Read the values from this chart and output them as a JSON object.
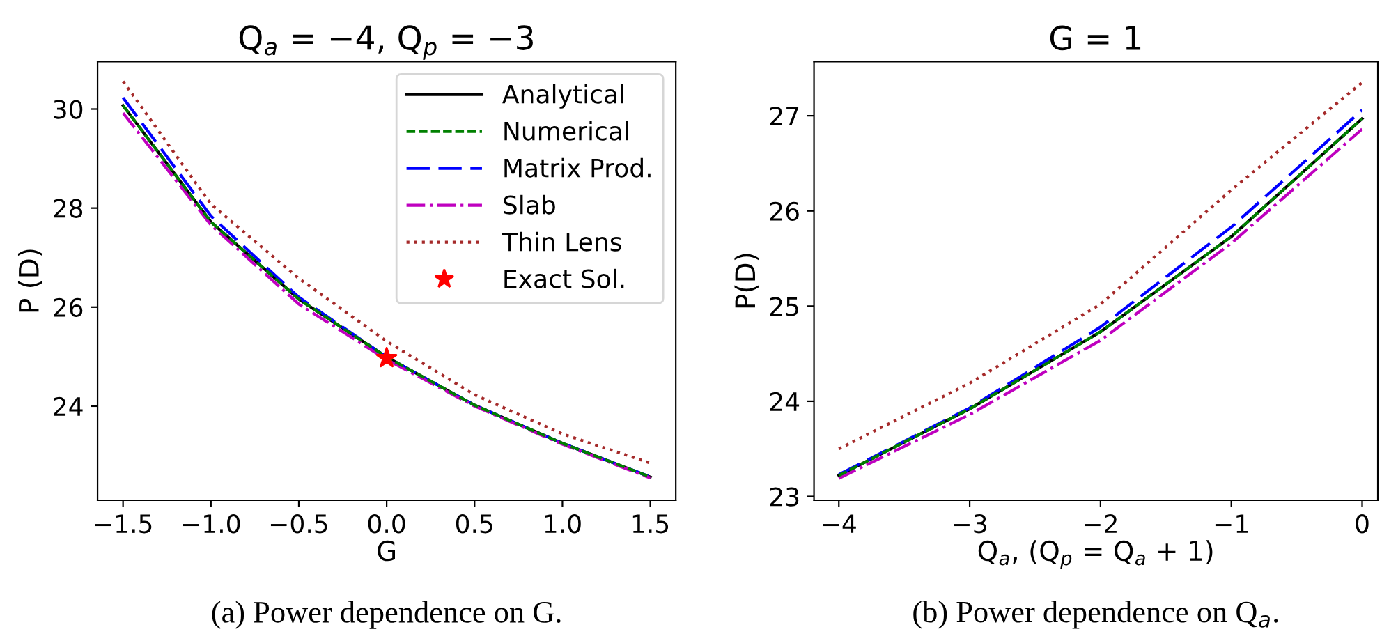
{
  "chart_data": [
    {
      "type": "line",
      "title": "Q$_{a}$ = −4, Q$_{p}$ = −3",
      "xlabel": "G",
      "ylabel": "P (D)",
      "annotations": [
        "(a) Power dependence on G."
      ],
      "x": [
        -1.5,
        -1.0,
        -0.5,
        0.0,
        0.5,
        1.0,
        1.5
      ],
      "series": [
        {
          "name": "Analytical",
          "color": "#000000",
          "line_style": "solid",
          "values": [
            30.07,
            27.72,
            26.16,
            24.99,
            24.02,
            23.25,
            22.57
          ]
        },
        {
          "name": "Numerical",
          "color": "#008000",
          "line_style": "dashed",
          "values": [
            30.07,
            27.72,
            26.16,
            24.99,
            24.02,
            23.25,
            22.57
          ]
        },
        {
          "name": "Matrix Prod.",
          "color": "#0000ff",
          "line_style": "longdashed",
          "values": [
            30.23,
            27.84,
            26.2,
            24.99,
            24.02,
            23.25,
            22.57
          ]
        },
        {
          "name": "Slab",
          "color": "#bf00bf",
          "line_style": "dashdot",
          "values": [
            29.92,
            27.66,
            26.06,
            24.94,
            24.0,
            23.23,
            22.55
          ]
        },
        {
          "name": "Thin Lens",
          "color": "#a52a2a",
          "line_style": "dotted",
          "values": [
            30.56,
            28.08,
            26.58,
            25.31,
            24.23,
            23.44,
            22.85
          ]
        },
        {
          "name": "Exact Sol.",
          "type": "scatter",
          "marker": "star",
          "color": "#ff0000",
          "x": [
            0.0
          ],
          "values": [
            24.97
          ]
        }
      ],
      "xlim": [
        -1.645,
        1.645
      ],
      "ylim": [
        22.1,
        30.96
      ],
      "xticks": [
        {
          "value": -1.5,
          "label": "−1.5"
        },
        {
          "value": -1.0,
          "label": "−1.0"
        },
        {
          "value": -0.5,
          "label": "−0.5"
        },
        {
          "value": 0.0,
          "label": "0.0"
        },
        {
          "value": 0.5,
          "label": "0.5"
        },
        {
          "value": 1.0,
          "label": "1.0"
        },
        {
          "value": 1.5,
          "label": "1.5"
        }
      ],
      "yticks": [
        24,
        26,
        28,
        30
      ],
      "grid": false,
      "legend": "top right"
    },
    {
      "type": "line",
      "title": "G = 1",
      "xlabel": "Q$_{a}$, (Q$_{p}$ = Q$_{a}$ + 1)",
      "ylabel": "P(D)",
      "annotations": [
        "(b) Power dependence on Q$_{a}$."
      ],
      "x": [
        -4,
        -3,
        -2,
        -1,
        0
      ],
      "series": [
        {
          "color": "#000000",
          "line_style": "solid",
          "values": [
            23.22,
            23.92,
            24.73,
            25.73,
            26.97
          ]
        },
        {
          "color": "#008000",
          "line_style": "dashed",
          "values": [
            23.22,
            23.92,
            24.73,
            25.73,
            26.97
          ]
        },
        {
          "color": "#0000ff",
          "line_style": "longdashed",
          "values": [
            23.23,
            23.93,
            24.78,
            25.83,
            27.06
          ]
        },
        {
          "color": "#bf00bf",
          "line_style": "dashdot",
          "values": [
            23.19,
            23.86,
            24.64,
            25.66,
            26.86
          ]
        },
        {
          "color": "#a52a2a",
          "line_style": "dotted",
          "values": [
            23.5,
            24.19,
            25.02,
            26.22,
            27.35
          ]
        }
      ],
      "xlim": [
        -4.19,
        0.12
      ],
      "ylim": [
        22.96,
        27.57
      ],
      "xticks": [
        {
          "value": -4,
          "label": "−4"
        },
        {
          "value": -3,
          "label": "−3"
        },
        {
          "value": -2,
          "label": "−2"
        },
        {
          "value": -1,
          "label": "−1"
        },
        0
      ],
      "yticks": [
        23,
        24,
        25,
        26,
        27
      ],
      "grid": false,
      "legend": false
    }
  ]
}
